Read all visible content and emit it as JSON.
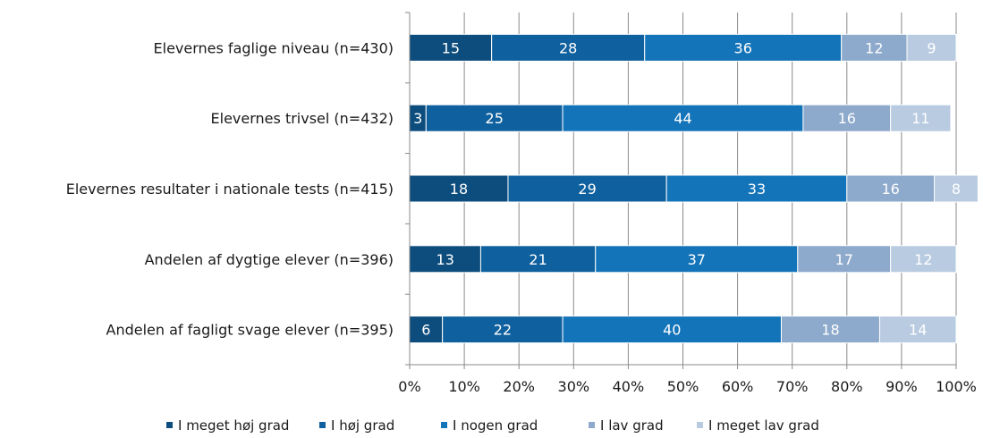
{
  "chart_data": {
    "type": "bar",
    "orientation": "horizontal",
    "stacked": true,
    "categories": [
      "Elevernes faglige niveau (n=430)",
      "Elevernes trivsel (n=432)",
      "Elevernes resultater i nationale tests (n=415)",
      "Andelen af dygtige elever  (n=396)",
      "Andelen af fagligt svage elever  (n=395)"
    ],
    "series": [
      {
        "name": "I meget høj grad",
        "color": "#0d4d7d",
        "values": [
          15,
          3,
          18,
          13,
          6
        ]
      },
      {
        "name": "I høj grad",
        "color": "#0f609e",
        "values": [
          28,
          25,
          29,
          21,
          22
        ]
      },
      {
        "name": "I nogen grad",
        "color": "#1474b9",
        "values": [
          36,
          44,
          33,
          37,
          40
        ]
      },
      {
        "name": "I lav grad",
        "color": "#8da9cb",
        "values": [
          12,
          16,
          16,
          17,
          18
        ]
      },
      {
        "name": "I meget lav grad",
        "color": "#b9cbe0",
        "values": [
          9,
          11,
          8,
          12,
          14
        ]
      }
    ],
    "xlim": [
      0,
      100
    ],
    "x_ticks": [
      "0%",
      "10%",
      "20%",
      "30%",
      "40%",
      "50%",
      "60%",
      "70%",
      "80%",
      "90%",
      "100%"
    ],
    "grid": true,
    "legend_position": "bottom",
    "title": "",
    "xlabel": "",
    "ylabel": ""
  }
}
